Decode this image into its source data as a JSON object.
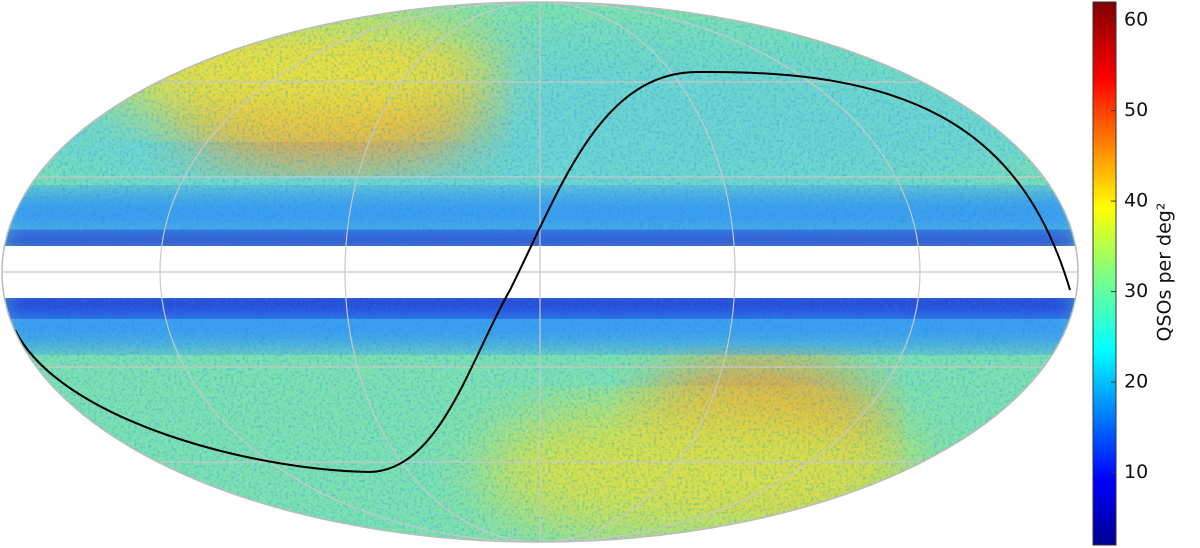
{
  "chart_data": {
    "type": "colorbar",
    "label": "QSOs per deg²",
    "ylim": [
      2,
      62
    ],
    "yticks": [
      10,
      20,
      30,
      40,
      50,
      60
    ]
  }
}
